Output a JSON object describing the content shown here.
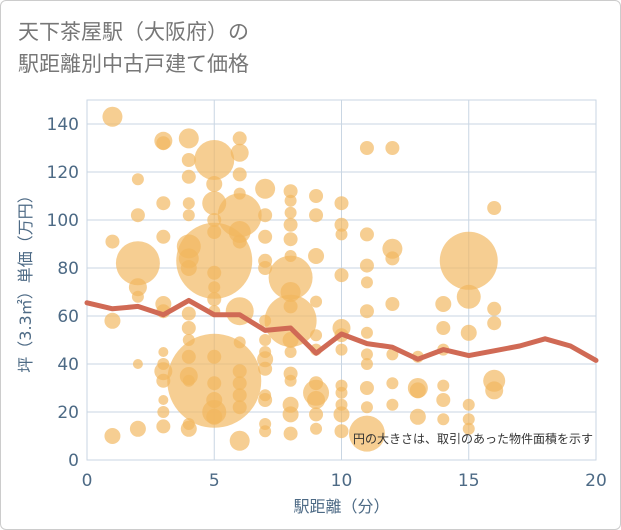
{
  "title_line1": "天下茶屋駅（大阪府）の",
  "title_line2": "駅距離別中古戸建て価格",
  "colors": {
    "bubble": "#f2b75e",
    "line": "#d06a55",
    "plot_bg": "#ffffff",
    "grid": "#c9d6e3",
    "axis_text": "#4d6a85",
    "frame": "#cccccc"
  },
  "chart_data": {
    "type": "scatter",
    "xlabel": "駅距離（分）",
    "ylabel": "坪（3.3㎡）単価（万円）",
    "xlim": [
      0,
      20
    ],
    "ylim": [
      0,
      150
    ],
    "xticks": [
      0,
      5,
      10,
      15,
      20
    ],
    "yticks": [
      0,
      20,
      40,
      60,
      80,
      100,
      120,
      140
    ],
    "grid": true,
    "annotation": "円の大きさは、取引のあった物件面積を示す",
    "bubbles": [
      {
        "x": 1,
        "y": 143,
        "s": 10
      },
      {
        "x": 1,
        "y": 91,
        "s": 7
      },
      {
        "x": 1,
        "y": 58,
        "s": 8
      },
      {
        "x": 1,
        "y": 10,
        "s": 8
      },
      {
        "x": 2,
        "y": 117,
        "s": 6
      },
      {
        "x": 2,
        "y": 102,
        "s": 7
      },
      {
        "x": 2,
        "y": 82,
        "s": 22
      },
      {
        "x": 2,
        "y": 72,
        "s": 9
      },
      {
        "x": 2,
        "y": 68,
        "s": 6
      },
      {
        "x": 2,
        "y": 40,
        "s": 5
      },
      {
        "x": 2,
        "y": 13,
        "s": 8
      },
      {
        "x": 3,
        "y": 133,
        "s": 9
      },
      {
        "x": 3,
        "y": 132,
        "s": 7
      },
      {
        "x": 3,
        "y": 107,
        "s": 7
      },
      {
        "x": 3,
        "y": 93,
        "s": 7
      },
      {
        "x": 3,
        "y": 65,
        "s": 8
      },
      {
        "x": 3,
        "y": 62,
        "s": 7
      },
      {
        "x": 3,
        "y": 45,
        "s": 5
      },
      {
        "x": 3,
        "y": 40,
        "s": 6
      },
      {
        "x": 3,
        "y": 37,
        "s": 9
      },
      {
        "x": 3,
        "y": 33,
        "s": 7
      },
      {
        "x": 3,
        "y": 25,
        "s": 5
      },
      {
        "x": 3,
        "y": 20,
        "s": 6
      },
      {
        "x": 3,
        "y": 14,
        "s": 7
      },
      {
        "x": 4,
        "y": 134,
        "s": 10
      },
      {
        "x": 4,
        "y": 125,
        "s": 7
      },
      {
        "x": 4,
        "y": 118,
        "s": 7
      },
      {
        "x": 4,
        "y": 107,
        "s": 6
      },
      {
        "x": 4,
        "y": 102,
        "s": 6
      },
      {
        "x": 4,
        "y": 89,
        "s": 12
      },
      {
        "x": 4,
        "y": 84,
        "s": 10
      },
      {
        "x": 4,
        "y": 80,
        "s": 8
      },
      {
        "x": 4,
        "y": 61,
        "s": 7
      },
      {
        "x": 4,
        "y": 55,
        "s": 7
      },
      {
        "x": 4,
        "y": 50,
        "s": 6
      },
      {
        "x": 4,
        "y": 43,
        "s": 7
      },
      {
        "x": 4,
        "y": 35,
        "s": 9
      },
      {
        "x": 4,
        "y": 33,
        "s": 6
      },
      {
        "x": 4,
        "y": 15,
        "s": 6
      },
      {
        "x": 4,
        "y": 13,
        "s": 8
      },
      {
        "x": 5,
        "y": 125,
        "s": 20
      },
      {
        "x": 5,
        "y": 115,
        "s": 8
      },
      {
        "x": 5,
        "y": 107,
        "s": 12
      },
      {
        "x": 5,
        "y": 100,
        "s": 7
      },
      {
        "x": 5,
        "y": 95,
        "s": 7
      },
      {
        "x": 5,
        "y": 83,
        "s": 38
      },
      {
        "x": 5,
        "y": 78,
        "s": 7
      },
      {
        "x": 5,
        "y": 72,
        "s": 6
      },
      {
        "x": 5,
        "y": 67,
        "s": 7
      },
      {
        "x": 5,
        "y": 62,
        "s": 6
      },
      {
        "x": 5,
        "y": 43,
        "s": 7
      },
      {
        "x": 5,
        "y": 33,
        "s": 47
      },
      {
        "x": 5,
        "y": 32,
        "s": 7
      },
      {
        "x": 5,
        "y": 25,
        "s": 8
      },
      {
        "x": 5,
        "y": 20,
        "s": 12
      },
      {
        "x": 5,
        "y": 18,
        "s": 8
      },
      {
        "x": 6,
        "y": 134,
        "s": 7
      },
      {
        "x": 6,
        "y": 128,
        "s": 9
      },
      {
        "x": 6,
        "y": 119,
        "s": 7
      },
      {
        "x": 6,
        "y": 111,
        "s": 6
      },
      {
        "x": 6,
        "y": 102,
        "s": 22
      },
      {
        "x": 6,
        "y": 95,
        "s": 11
      },
      {
        "x": 6,
        "y": 91,
        "s": 7
      },
      {
        "x": 6,
        "y": 62,
        "s": 14
      },
      {
        "x": 6,
        "y": 49,
        "s": 6
      },
      {
        "x": 6,
        "y": 37,
        "s": 7
      },
      {
        "x": 6,
        "y": 32,
        "s": 7
      },
      {
        "x": 6,
        "y": 27,
        "s": 7
      },
      {
        "x": 6,
        "y": 22,
        "s": 7
      },
      {
        "x": 6,
        "y": 8,
        "s": 10
      },
      {
        "x": 7,
        "y": 113,
        "s": 10
      },
      {
        "x": 7,
        "y": 102,
        "s": 7
      },
      {
        "x": 7,
        "y": 93,
        "s": 7
      },
      {
        "x": 7,
        "y": 83,
        "s": 7
      },
      {
        "x": 7,
        "y": 80,
        "s": 7
      },
      {
        "x": 7,
        "y": 58,
        "s": 6
      },
      {
        "x": 7,
        "y": 50,
        "s": 6
      },
      {
        "x": 7,
        "y": 45,
        "s": 6
      },
      {
        "x": 7,
        "y": 42,
        "s": 8
      },
      {
        "x": 7,
        "y": 38,
        "s": 7
      },
      {
        "x": 7,
        "y": 27,
        "s": 6
      },
      {
        "x": 7,
        "y": 25,
        "s": 7
      },
      {
        "x": 7,
        "y": 15,
        "s": 6
      },
      {
        "x": 7,
        "y": 12,
        "s": 6
      },
      {
        "x": 8,
        "y": 112,
        "s": 7
      },
      {
        "x": 8,
        "y": 108,
        "s": 6
      },
      {
        "x": 8,
        "y": 103,
        "s": 6
      },
      {
        "x": 8,
        "y": 98,
        "s": 7
      },
      {
        "x": 8,
        "y": 92,
        "s": 7
      },
      {
        "x": 8,
        "y": 85,
        "s": 6
      },
      {
        "x": 8,
        "y": 76,
        "s": 22
      },
      {
        "x": 8,
        "y": 70,
        "s": 10
      },
      {
        "x": 8,
        "y": 64,
        "s": 7
      },
      {
        "x": 8,
        "y": 58,
        "s": 26
      },
      {
        "x": 8,
        "y": 50,
        "s": 8
      },
      {
        "x": 8,
        "y": 45,
        "s": 6
      },
      {
        "x": 8,
        "y": 36,
        "s": 7
      },
      {
        "x": 8,
        "y": 33,
        "s": 6
      },
      {
        "x": 8,
        "y": 23,
        "s": 8
      },
      {
        "x": 8,
        "y": 19,
        "s": 8
      },
      {
        "x": 8,
        "y": 11,
        "s": 7
      },
      {
        "x": 9,
        "y": 110,
        "s": 7
      },
      {
        "x": 9,
        "y": 102,
        "s": 7
      },
      {
        "x": 9,
        "y": 85,
        "s": 8
      },
      {
        "x": 9,
        "y": 66,
        "s": 6
      },
      {
        "x": 9,
        "y": 52,
        "s": 6
      },
      {
        "x": 9,
        "y": 46,
        "s": 6
      },
      {
        "x": 9,
        "y": 32,
        "s": 7
      },
      {
        "x": 9,
        "y": 28,
        "s": 13
      },
      {
        "x": 9,
        "y": 25,
        "s": 9
      },
      {
        "x": 9,
        "y": 19,
        "s": 7
      },
      {
        "x": 9,
        "y": 13,
        "s": 6
      },
      {
        "x": 10,
        "y": 107,
        "s": 7
      },
      {
        "x": 10,
        "y": 98,
        "s": 7
      },
      {
        "x": 10,
        "y": 94,
        "s": 6
      },
      {
        "x": 10,
        "y": 77,
        "s": 7
      },
      {
        "x": 10,
        "y": 55,
        "s": 9
      },
      {
        "x": 10,
        "y": 52,
        "s": 7
      },
      {
        "x": 10,
        "y": 46,
        "s": 6
      },
      {
        "x": 10,
        "y": 31,
        "s": 6
      },
      {
        "x": 10,
        "y": 28,
        "s": 6
      },
      {
        "x": 10,
        "y": 23,
        "s": 6
      },
      {
        "x": 10,
        "y": 19,
        "s": 8
      },
      {
        "x": 10,
        "y": 12,
        "s": 7
      },
      {
        "x": 11,
        "y": 130,
        "s": 7
      },
      {
        "x": 11,
        "y": 94,
        "s": 7
      },
      {
        "x": 11,
        "y": 81,
        "s": 7
      },
      {
        "x": 11,
        "y": 74,
        "s": 6
      },
      {
        "x": 11,
        "y": 62,
        "s": 7
      },
      {
        "x": 11,
        "y": 53,
        "s": 6
      },
      {
        "x": 11,
        "y": 44,
        "s": 6
      },
      {
        "x": 11,
        "y": 40,
        "s": 6
      },
      {
        "x": 11,
        "y": 30,
        "s": 7
      },
      {
        "x": 11,
        "y": 22,
        "s": 6
      },
      {
        "x": 11,
        "y": 11,
        "s": 18
      },
      {
        "x": 12,
        "y": 130,
        "s": 7
      },
      {
        "x": 12,
        "y": 88,
        "s": 10
      },
      {
        "x": 12,
        "y": 84,
        "s": 7
      },
      {
        "x": 12,
        "y": 65,
        "s": 7
      },
      {
        "x": 12,
        "y": 44,
        "s": 6
      },
      {
        "x": 12,
        "y": 32,
        "s": 6
      },
      {
        "x": 12,
        "y": 23,
        "s": 6
      },
      {
        "x": 13,
        "y": 43,
        "s": 6
      },
      {
        "x": 13,
        "y": 30,
        "s": 10
      },
      {
        "x": 13,
        "y": 29,
        "s": 8
      },
      {
        "x": 13,
        "y": 18,
        "s": 8
      },
      {
        "x": 14,
        "y": 65,
        "s": 8
      },
      {
        "x": 14,
        "y": 55,
        "s": 7
      },
      {
        "x": 14,
        "y": 46,
        "s": 6
      },
      {
        "x": 14,
        "y": 31,
        "s": 6
      },
      {
        "x": 14,
        "y": 25,
        "s": 7
      },
      {
        "x": 14,
        "y": 17,
        "s": 6
      },
      {
        "x": 15,
        "y": 83,
        "s": 29
      },
      {
        "x": 15,
        "y": 68,
        "s": 12
      },
      {
        "x": 15,
        "y": 53,
        "s": 8
      },
      {
        "x": 15,
        "y": 23,
        "s": 6
      },
      {
        "x": 15,
        "y": 17,
        "s": 6
      },
      {
        "x": 15,
        "y": 13,
        "s": 6
      },
      {
        "x": 16,
        "y": 105,
        "s": 7
      },
      {
        "x": 16,
        "y": 63,
        "s": 7
      },
      {
        "x": 16,
        "y": 57,
        "s": 7
      },
      {
        "x": 16,
        "y": 33,
        "s": 11
      },
      {
        "x": 16,
        "y": 29,
        "s": 9
      }
    ],
    "series": [
      {
        "type": "line",
        "x": [
          0,
          1,
          2,
          3,
          4,
          5,
          6,
          7,
          8,
          9,
          10,
          11,
          12,
          13,
          14,
          15,
          16,
          17,
          18,
          19,
          20
        ],
        "y": [
          65.5,
          63,
          64,
          60.5,
          66.5,
          60.5,
          60.5,
          54,
          55,
          44.5,
          52.5,
          48.5,
          47,
          42,
          46,
          43.5,
          45.5,
          47.5,
          50.5,
          47.5,
          41.5
        ]
      }
    ]
  }
}
